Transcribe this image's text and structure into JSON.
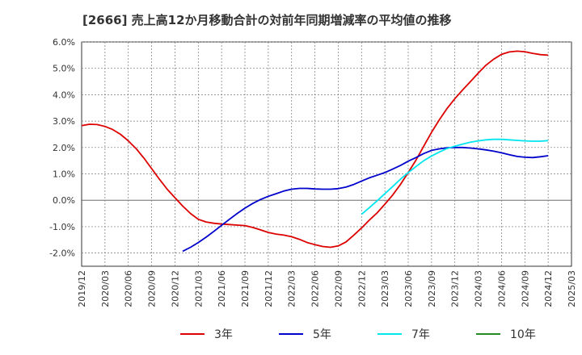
{
  "chart_data": {
    "type": "line",
    "title": "[2666]  売上高12か月移動合計の対前年同期増減率の平均値の推移",
    "xlabel": "",
    "ylabel": "",
    "ylim": [
      -0.025,
      0.06
    ],
    "y_ticks": [
      0.06,
      0.05,
      0.04,
      0.03,
      0.02,
      0.01,
      0.0,
      -0.01,
      -0.02
    ],
    "y_tick_labels": [
      "6.0%",
      "5.0%",
      "4.0%",
      "3.0%",
      "2.0%",
      "1.0%",
      "0.0%",
      "-1.0%",
      "-2.0%"
    ],
    "x_range": [
      "2019-12",
      "2025-03"
    ],
    "x_tick_labels": [
      "2019/12",
      "2020/03",
      "2020/06",
      "2020/09",
      "2020/12",
      "2021/03",
      "2021/06",
      "2021/09",
      "2021/12",
      "2022/03",
      "2022/06",
      "2022/09",
      "2022/12",
      "2023/03",
      "2023/06",
      "2023/09",
      "2023/12",
      "2024/03",
      "2024/06",
      "2024/09",
      "2024/12",
      "2025/03"
    ],
    "grid": true,
    "legend_position": "bottom",
    "series": [
      {
        "name": "3年",
        "color": "#dd0000",
        "points": [
          [
            "2019-12",
            0.0283
          ],
          [
            "2020-01",
            0.0288
          ],
          [
            "2020-02",
            0.0287
          ],
          [
            "2020-03",
            0.028
          ],
          [
            "2020-04",
            0.0268
          ],
          [
            "2020-05",
            0.025
          ],
          [
            "2020-06",
            0.0225
          ],
          [
            "2020-07",
            0.0196
          ],
          [
            "2020-08",
            0.016
          ],
          [
            "2020-09",
            0.012
          ],
          [
            "2020-10",
            0.008
          ],
          [
            "2020-11",
            0.0042
          ],
          [
            "2020-12",
            0.001
          ],
          [
            "2021-01",
            -0.0022
          ],
          [
            "2021-02",
            -0.005
          ],
          [
            "2021-03",
            -0.0072
          ],
          [
            "2021-04",
            -0.0082
          ],
          [
            "2021-05",
            -0.0087
          ],
          [
            "2021-06",
            -0.009
          ],
          [
            "2021-07",
            -0.0092
          ],
          [
            "2021-08",
            -0.0094
          ],
          [
            "2021-09",
            -0.0096
          ],
          [
            "2021-10",
            -0.0103
          ],
          [
            "2021-11",
            -0.0112
          ],
          [
            "2021-12",
            -0.0122
          ],
          [
            "2022-01",
            -0.0128
          ],
          [
            "2022-02",
            -0.0132
          ],
          [
            "2022-03",
            -0.0138
          ],
          [
            "2022-04",
            -0.0148
          ],
          [
            "2022-05",
            -0.016
          ],
          [
            "2022-06",
            -0.0168
          ],
          [
            "2022-07",
            -0.0175
          ],
          [
            "2022-08",
            -0.0178
          ],
          [
            "2022-09",
            -0.0173
          ],
          [
            "2022-10",
            -0.0158
          ],
          [
            "2022-11",
            -0.0132
          ],
          [
            "2022-12",
            -0.0105
          ],
          [
            "2023-01",
            -0.0075
          ],
          [
            "2023-02",
            -0.0048
          ],
          [
            "2023-03",
            -0.0015
          ],
          [
            "2023-04",
            0.002
          ],
          [
            "2023-05",
            0.006
          ],
          [
            "2023-06",
            0.0105
          ],
          [
            "2023-07",
            0.0152
          ],
          [
            "2023-08",
            0.0205
          ],
          [
            "2023-09",
            0.0258
          ],
          [
            "2023-10",
            0.0305
          ],
          [
            "2023-11",
            0.0348
          ],
          [
            "2023-12",
            0.0385
          ],
          [
            "2024-01",
            0.0418
          ],
          [
            "2024-02",
            0.045
          ],
          [
            "2024-03",
            0.0482
          ],
          [
            "2024-04",
            0.0512
          ],
          [
            "2024-05",
            0.0535
          ],
          [
            "2024-06",
            0.0553
          ],
          [
            "2024-07",
            0.0562
          ],
          [
            "2024-08",
            0.0565
          ],
          [
            "2024-09",
            0.0563
          ],
          [
            "2024-10",
            0.0557
          ],
          [
            "2024-11",
            0.0552
          ],
          [
            "2024-12",
            0.055
          ]
        ]
      },
      {
        "name": "5年",
        "color": "#0000cc",
        "points": [
          [
            "2021-01",
            -0.0193
          ],
          [
            "2021-02",
            -0.0178
          ],
          [
            "2021-03",
            -0.016
          ],
          [
            "2021-04",
            -0.014
          ],
          [
            "2021-05",
            -0.0118
          ],
          [
            "2021-06",
            -0.0095
          ],
          [
            "2021-07",
            -0.0072
          ],
          [
            "2021-08",
            -0.005
          ],
          [
            "2021-09",
            -0.003
          ],
          [
            "2021-10",
            -0.0012
          ],
          [
            "2021-11",
            0.0003
          ],
          [
            "2021-12",
            0.0015
          ],
          [
            "2022-01",
            0.0025
          ],
          [
            "2022-02",
            0.0035
          ],
          [
            "2022-03",
            0.0042
          ],
          [
            "2022-04",
            0.0045
          ],
          [
            "2022-05",
            0.0045
          ],
          [
            "2022-06",
            0.0043
          ],
          [
            "2022-07",
            0.0042
          ],
          [
            "2022-08",
            0.0042
          ],
          [
            "2022-09",
            0.0044
          ],
          [
            "2022-10",
            0.005
          ],
          [
            "2022-11",
            0.006
          ],
          [
            "2022-12",
            0.0073
          ],
          [
            "2023-01",
            0.0085
          ],
          [
            "2023-02",
            0.0095
          ],
          [
            "2023-03",
            0.0105
          ],
          [
            "2023-04",
            0.0118
          ],
          [
            "2023-05",
            0.0132
          ],
          [
            "2023-06",
            0.0148
          ],
          [
            "2023-07",
            0.0162
          ],
          [
            "2023-08",
            0.0177
          ],
          [
            "2023-09",
            0.0189
          ],
          [
            "2023-10",
            0.0195
          ],
          [
            "2023-11",
            0.0199
          ],
          [
            "2023-12",
            0.02
          ],
          [
            "2024-01",
            0.02
          ],
          [
            "2024-02",
            0.0198
          ],
          [
            "2024-03",
            0.0195
          ],
          [
            "2024-04",
            0.0191
          ],
          [
            "2024-05",
            0.0186
          ],
          [
            "2024-06",
            0.018
          ],
          [
            "2024-07",
            0.0173
          ],
          [
            "2024-08",
            0.0166
          ],
          [
            "2024-09",
            0.0163
          ],
          [
            "2024-10",
            0.0162
          ],
          [
            "2024-11",
            0.0165
          ],
          [
            "2024-12",
            0.0169
          ]
        ]
      },
      {
        "name": "7年",
        "color": "#00e5ee",
        "points": [
          [
            "2022-12",
            -0.0053
          ],
          [
            "2023-01",
            -0.0028
          ],
          [
            "2023-02",
            -0.0002
          ],
          [
            "2023-03",
            0.0025
          ],
          [
            "2023-04",
            0.0052
          ],
          [
            "2023-05",
            0.008
          ],
          [
            "2023-06",
            0.0105
          ],
          [
            "2023-07",
            0.0128
          ],
          [
            "2023-08",
            0.015
          ],
          [
            "2023-09",
            0.0168
          ],
          [
            "2023-10",
            0.0183
          ],
          [
            "2023-11",
            0.0196
          ],
          [
            "2023-12",
            0.0205
          ],
          [
            "2024-01",
            0.0213
          ],
          [
            "2024-02",
            0.022
          ],
          [
            "2024-03",
            0.0225
          ],
          [
            "2024-04",
            0.0229
          ],
          [
            "2024-05",
            0.0231
          ],
          [
            "2024-06",
            0.0231
          ],
          [
            "2024-07",
            0.0229
          ],
          [
            "2024-08",
            0.0227
          ],
          [
            "2024-09",
            0.0225
          ],
          [
            "2024-10",
            0.0224
          ],
          [
            "2024-11",
            0.0224
          ],
          [
            "2024-12",
            0.0226
          ]
        ]
      },
      {
        "name": "10年",
        "color": "#228b22",
        "points": []
      }
    ]
  }
}
